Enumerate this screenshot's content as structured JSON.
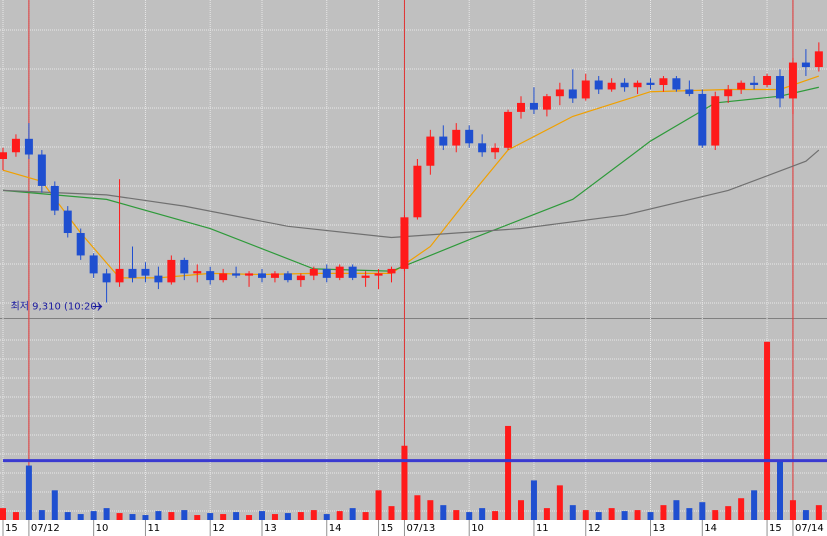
{
  "chart_data": {
    "type": "candlestick",
    "annotation": "최저 9,310 (10:20)",
    "annotation_index": 8,
    "up_color": "#ff1a1a",
    "down_color": "#1f4fd0",
    "ylim": [
      9250,
      10650
    ],
    "volume_lim": [
      0,
      200
    ],
    "volume_ref": 60,
    "volume_ref_color": "#3a3ad0",
    "session_breaks": [
      2,
      31,
      61
    ],
    "grid": true,
    "xticks": [
      {
        "value": 0,
        "label": "15"
      },
      {
        "value": 2,
        "label": "07/12"
      },
      {
        "value": 7,
        "label": "10"
      },
      {
        "value": 11,
        "label": "11"
      },
      {
        "value": 16,
        "label": "12"
      },
      {
        "value": 20,
        "label": "13"
      },
      {
        "value": 25,
        "label": "14"
      },
      {
        "value": 29,
        "label": "15"
      },
      {
        "value": 31,
        "label": "07/13"
      },
      {
        "value": 36,
        "label": "10"
      },
      {
        "value": 41,
        "label": "11"
      },
      {
        "value": 45,
        "label": "12"
      },
      {
        "value": 50,
        "label": "13"
      },
      {
        "value": 54,
        "label": "14"
      },
      {
        "value": 59,
        "label": "15"
      },
      {
        "value": 61,
        "label": "07/14"
      }
    ],
    "candles": [
      [
        9950,
        10000,
        9900,
        9980
      ],
      [
        9980,
        10060,
        9960,
        10040
      ],
      [
        10040,
        10110,
        9950,
        9970
      ],
      [
        9970,
        9990,
        9800,
        9830
      ],
      [
        9830,
        9850,
        9700,
        9720
      ],
      [
        9720,
        9740,
        9600,
        9620
      ],
      [
        9620,
        9640,
        9500,
        9520
      ],
      [
        9520,
        9530,
        9420,
        9440
      ],
      [
        9440,
        9460,
        9310,
        9400
      ],
      [
        9400,
        9860,
        9380,
        9460
      ],
      [
        9460,
        9560,
        9400,
        9420
      ],
      [
        9460,
        9490,
        9400,
        9430
      ],
      [
        9430,
        9470,
        9370,
        9400
      ],
      [
        9400,
        9520,
        9390,
        9500
      ],
      [
        9500,
        9510,
        9410,
        9440
      ],
      [
        9440,
        9480,
        9400,
        9450
      ],
      [
        9450,
        9470,
        9390,
        9410
      ],
      [
        9410,
        9460,
        9400,
        9440
      ],
      [
        9440,
        9470,
        9420,
        9430
      ],
      [
        9430,
        9450,
        9380,
        9440
      ],
      [
        9440,
        9460,
        9400,
        9420
      ],
      [
        9420,
        9450,
        9400,
        9440
      ],
      [
        9440,
        9450,
        9400,
        9410
      ],
      [
        9410,
        9440,
        9380,
        9430
      ],
      [
        9430,
        9470,
        9410,
        9460
      ],
      [
        9460,
        9480,
        9400,
        9420
      ],
      [
        9420,
        9480,
        9410,
        9470
      ],
      [
        9470,
        9480,
        9410,
        9420
      ],
      [
        9420,
        9450,
        9380,
        9430
      ],
      [
        9430,
        9460,
        9370,
        9440
      ],
      [
        9440,
        9470,
        9400,
        9460
      ],
      [
        9460,
        9700,
        9450,
        9690
      ],
      [
        9690,
        9950,
        9680,
        9920
      ],
      [
        9920,
        10080,
        9880,
        10050
      ],
      [
        10050,
        10100,
        9990,
        10010
      ],
      [
        10010,
        10110,
        9980,
        10080
      ],
      [
        10080,
        10100,
        10000,
        10020
      ],
      [
        10020,
        10060,
        9960,
        9980
      ],
      [
        9980,
        10020,
        9950,
        10000
      ],
      [
        10000,
        10170,
        9990,
        10160
      ],
      [
        10160,
        10230,
        10130,
        10200
      ],
      [
        10200,
        10270,
        10150,
        10170
      ],
      [
        10170,
        10240,
        10140,
        10230
      ],
      [
        10230,
        10290,
        10190,
        10260
      ],
      [
        10260,
        10350,
        10200,
        10220
      ],
      [
        10220,
        10330,
        10210,
        10300
      ],
      [
        10300,
        10320,
        10240,
        10260
      ],
      [
        10260,
        10310,
        10250,
        10290
      ],
      [
        10290,
        10310,
        10250,
        10270
      ],
      [
        10270,
        10300,
        10240,
        10290
      ],
      [
        10290,
        10310,
        10260,
        10280
      ],
      [
        10280,
        10320,
        10250,
        10310
      ],
      [
        10310,
        10320,
        10250,
        10260
      ],
      [
        10260,
        10300,
        10230,
        10240
      ],
      [
        10240,
        10260,
        10000,
        10010
      ],
      [
        10010,
        10250,
        9990,
        10230
      ],
      [
        10230,
        10280,
        10200,
        10260
      ],
      [
        10260,
        10300,
        10240,
        10290
      ],
      [
        10290,
        10320,
        10260,
        10280
      ],
      [
        10280,
        10330,
        10270,
        10320
      ],
      [
        10320,
        10350,
        10180,
        10220
      ],
      [
        10220,
        10400,
        10150,
        10380
      ],
      [
        10380,
        10440,
        10320,
        10360
      ],
      [
        10360,
        10470,
        10340,
        10430
      ]
    ],
    "volume": [
      12,
      8,
      55,
      10,
      30,
      8,
      6,
      9,
      12,
      7,
      6,
      5,
      9,
      8,
      10,
      5,
      7,
      6,
      8,
      5,
      9,
      6,
      7,
      8,
      10,
      6,
      9,
      12,
      8,
      30,
      14,
      75,
      25,
      20,
      15,
      10,
      8,
      12,
      9,
      95,
      20,
      40,
      12,
      35,
      15,
      10,
      8,
      12,
      9,
      10,
      8,
      15,
      20,
      12,
      18,
      10,
      14,
      22,
      30,
      180,
      60,
      20,
      10,
      15
    ],
    "series": [
      {
        "color": "#f0a000",
        "x": [
          0,
          3,
          6,
          9,
          12,
          16,
          20,
          24,
          30,
          33,
          36,
          39,
          44,
          50,
          56,
          60,
          63
        ],
        "values": [
          9900,
          9850,
          9620,
          9420,
          9420,
          9440,
          9435,
          9440,
          9440,
          9560,
          9780,
          9990,
          10140,
          10250,
          10260,
          10260,
          10320
        ]
      },
      {
        "color": "#2e9a3a",
        "x": [
          0,
          8,
          16,
          24,
          30,
          36,
          44,
          50,
          55,
          60,
          63
        ],
        "values": [
          9810,
          9770,
          9640,
          9460,
          9450,
          9590,
          9770,
          10030,
          10200,
          10230,
          10270
        ]
      },
      {
        "color": "#707070",
        "x": [
          0,
          8,
          14,
          22,
          30,
          40,
          48,
          56,
          62,
          63
        ],
        "values": [
          9810,
          9790,
          9740,
          9650,
          9600,
          9640,
          9700,
          9810,
          9940,
          9990
        ]
      }
    ]
  }
}
